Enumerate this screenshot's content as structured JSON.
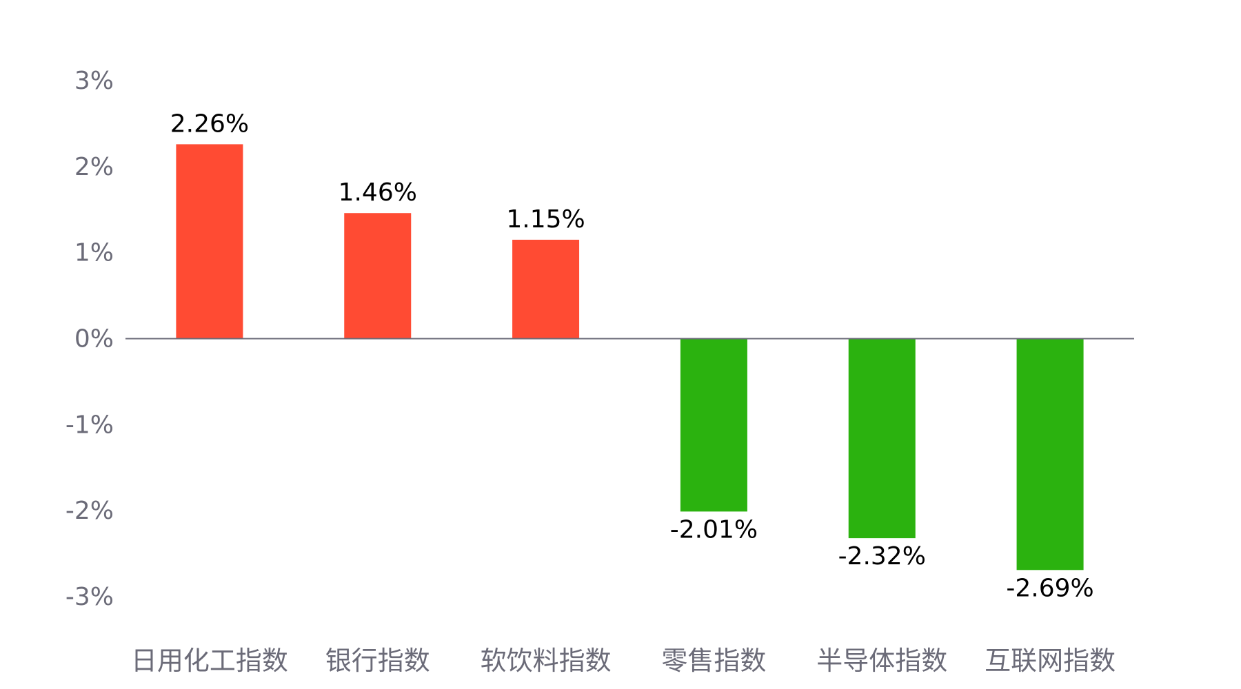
{
  "chart_data": {
    "type": "bar",
    "categories": [
      "日用化工指数",
      "银行指数",
      "软饮料指数",
      "零售指数",
      "半导体指数",
      "互联网指数"
    ],
    "values": [
      2.26,
      1.46,
      1.15,
      -2.01,
      -2.32,
      -2.69
    ],
    "data_labels": [
      "2.26%",
      "1.46%",
      "1.15%",
      "-2.01%",
      "-2.32%",
      "-2.69%"
    ],
    "ylim": [
      -3,
      3
    ],
    "yticks": [
      3,
      2,
      1,
      0,
      -1,
      -2,
      -3
    ],
    "ytick_labels": [
      "3%",
      "2%",
      "1%",
      "0%",
      "-1%",
      "-2%",
      "-3%"
    ],
    "grid": false,
    "legend": "none",
    "colors": {
      "positive": "#ff4b33",
      "negative": "#2bb20f",
      "axis": "#6b6b78",
      "label": "#000000"
    }
  }
}
